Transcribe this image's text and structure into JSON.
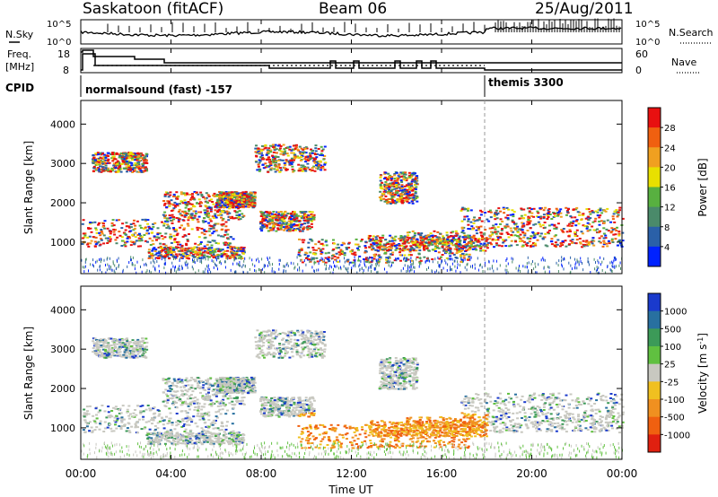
{
  "header": {
    "title": "Saskatoon (fitACF)",
    "beam": "Beam 06",
    "date": "25/Aug/2011"
  },
  "noise_panel": {
    "left_label": "N.Sky",
    "left_ticks": [
      "10^5",
      "10^0"
    ],
    "right_ticks": [
      "10^5",
      "10^0"
    ],
    "right_label": "N.Search"
  },
  "freq_panel": {
    "left_label_1": "Freq.",
    "left_label_2": "[MHz]",
    "left_ticks": [
      "18",
      "8"
    ],
    "right_ticks": [
      "60",
      "0"
    ],
    "right_label": "Nave"
  },
  "cpid": {
    "label": "CPID",
    "mode1": "normalsound (fast) -157",
    "mode2": "themis 3300"
  },
  "chart_data": [
    {
      "type": "heatmap",
      "quantity": "Power",
      "ylabel": "Slant Range [km]",
      "yticks": [
        "1000",
        "2000",
        "3000",
        "4000"
      ],
      "ylim": [
        200,
        4600
      ],
      "colorbar_label": "Power [dB]",
      "colorbar_ticks": [
        "4",
        "8",
        "12",
        "16",
        "20",
        "24",
        "28"
      ],
      "colors": [
        "#0022ff",
        "#2a60a8",
        "#4a8a6a",
        "#58b040",
        "#e8e000",
        "#f0a020",
        "#f06010",
        "#e81010"
      ]
    },
    {
      "type": "heatmap",
      "quantity": "Velocity",
      "ylabel": "Slant Range [km]",
      "yticks": [
        "1000",
        "2000",
        "3000",
        "4000"
      ],
      "ylim": [
        200,
        4600
      ],
      "colorbar_label": "Velocity [m s^-1]",
      "colorbar_ticks": [
        "1000",
        "500",
        "100",
        "25",
        "-25",
        "-100",
        "-500",
        "-1000"
      ],
      "colors": [
        "#1a3acc",
        "#2870a0",
        "#3c9a58",
        "#60c040",
        "#c8c8c0",
        "#f0c020",
        "#f09020",
        "#f06010",
        "#e02010"
      ]
    }
  ],
  "x_axis": {
    "ticks": [
      "00:00",
      "04:00",
      "08:00",
      "12:00",
      "16:00",
      "20:00",
      "00:00"
    ],
    "label": "Time UT"
  }
}
